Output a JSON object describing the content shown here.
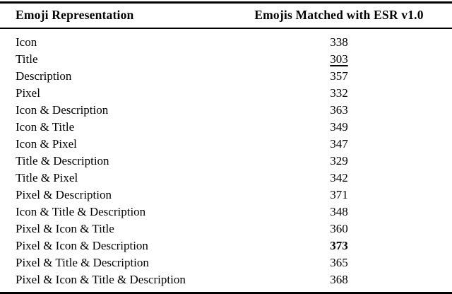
{
  "table": {
    "col1_header": "Emoji Representation",
    "col2_header": "Emojis Matched with ESR v1.0",
    "rows": [
      {
        "representation": "Icon",
        "count": "338",
        "emphasis": "none"
      },
      {
        "representation": "Title",
        "count": "303",
        "emphasis": "underline"
      },
      {
        "representation": "Description",
        "count": "357",
        "emphasis": "none"
      },
      {
        "representation": "Pixel",
        "count": "332",
        "emphasis": "none"
      },
      {
        "representation": "Icon & Description",
        "count": "363",
        "emphasis": "none"
      },
      {
        "representation": "Icon & Title",
        "count": "349",
        "emphasis": "none"
      },
      {
        "representation": "Icon & Pixel",
        "count": "347",
        "emphasis": "none"
      },
      {
        "representation": "Title & Description",
        "count": "329",
        "emphasis": "none"
      },
      {
        "representation": "Title & Pixel",
        "count": "342",
        "emphasis": "none"
      },
      {
        "representation": "Pixel & Description",
        "count": "371",
        "emphasis": "none"
      },
      {
        "representation": "Icon & Title & Description",
        "count": "348",
        "emphasis": "none"
      },
      {
        "representation": "Pixel & Icon & Title",
        "count": "360",
        "emphasis": "none"
      },
      {
        "representation": "Pixel & Icon & Description",
        "count": "373",
        "emphasis": "bold"
      },
      {
        "representation": "Pixel & Title & Description",
        "count": "365",
        "emphasis": "none"
      },
      {
        "representation": "Pixel & Icon & Title & Description",
        "count": "368",
        "emphasis": "none"
      }
    ]
  },
  "colors": {
    "text": "#000000",
    "background": "#ffffff",
    "rule": "#000000"
  }
}
